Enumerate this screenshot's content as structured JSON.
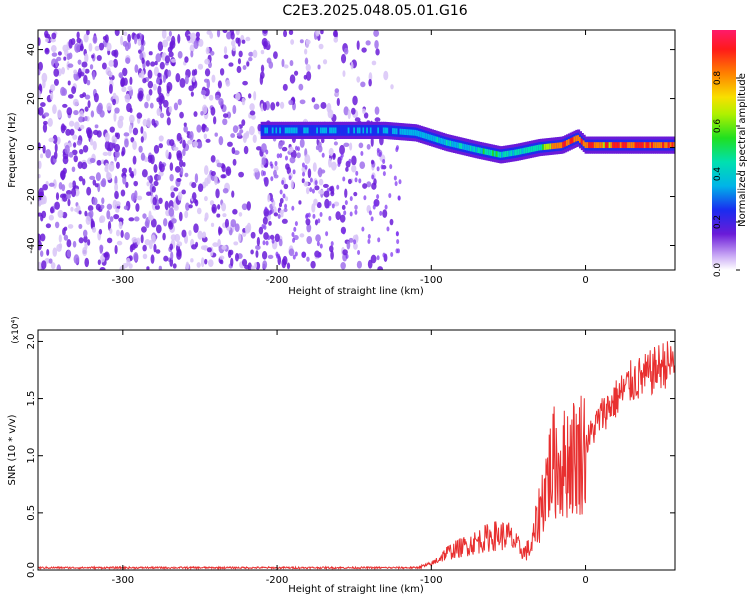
{
  "title": "C2E3.2025.048.05.01.G16",
  "chart_data": [
    {
      "type": "heatmap",
      "xlabel": "Height of straight line (km)",
      "ylabel": "Frequency (Hz)",
      "xlim": [
        -355,
        58
      ],
      "ylim": [
        -50,
        48
      ],
      "xticks": [
        -300,
        -200,
        -100,
        0
      ],
      "yticks": [
        -40,
        -20,
        0,
        20,
        40
      ],
      "colorbar": {
        "label": "Normalized spectral amplitude",
        "range": [
          0.0,
          1.0
        ],
        "ticks": [
          0.0,
          0.2,
          0.4,
          0.6,
          0.8
        ]
      },
      "signal_trace": {
        "x": [
          -210,
          -180,
          -150,
          -130,
          -110,
          -90,
          -70,
          -55,
          -45,
          -30,
          -15,
          -5,
          0,
          20,
          40,
          58
        ],
        "y": [
          7,
          7,
          7,
          7,
          6,
          2,
          -1,
          -3,
          -2,
          0,
          1,
          4,
          1,
          1,
          1,
          1
        ],
        "peak_amplitude": [
          0.25,
          0.3,
          0.25,
          0.3,
          0.3,
          0.35,
          0.4,
          0.45,
          0.4,
          0.5,
          0.8,
          0.9,
          0.85,
          0.85,
          0.85,
          0.85
        ]
      },
      "noise_region_x": [
        -355,
        -125
      ],
      "colors": {
        "signal_peak": "#ff1a1a",
        "noise": "#7a2df0"
      }
    },
    {
      "type": "line",
      "xlabel": "Height of straight line (km)",
      "ylabel": "SNR (10 * v/v)",
      "yscale_label": "(x10⁴)",
      "xlim": [
        -355,
        58
      ],
      "ylim": [
        0,
        2.1
      ],
      "xticks": [
        -300,
        -200,
        -100,
        0
      ],
      "yticks": [
        0.0,
        0.5,
        1.0,
        1.5,
        2.0
      ],
      "series": [
        {
          "color": "#e83030",
          "x": [
            -355,
            -110,
            -100,
            -90,
            -80,
            -70,
            -60,
            -50,
            -40,
            -35,
            -30,
            -25,
            -20,
            -15,
            -10,
            -5,
            0,
            10,
            20,
            30,
            40,
            50,
            58
          ],
          "y": [
            0.02,
            0.02,
            0.05,
            0.15,
            0.2,
            0.25,
            0.3,
            0.3,
            0.15,
            0.2,
            0.5,
            0.8,
            0.95,
            0.9,
            1.0,
            1.0,
            1.1,
            1.35,
            1.5,
            1.65,
            1.7,
            1.8,
            1.8
          ]
        }
      ]
    }
  ]
}
